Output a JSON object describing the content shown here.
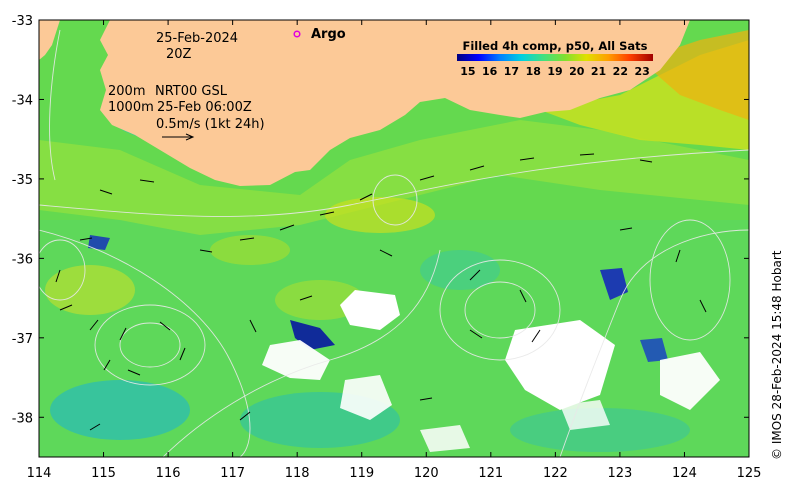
{
  "map": {
    "date_line1": "25-Feb-2024",
    "date_line2": "20Z",
    "argo_label": "Argo",
    "depth_200": "200m",
    "depth_1000": "1000m",
    "ssh_source": "NRT00 GSL",
    "ssh_time": "25-Feb 06:00Z",
    "velocity_scale": "0.5m/s (1kt 24h)",
    "lon_ticks": [
      "114",
      "115",
      "116",
      "117",
      "118",
      "119",
      "120",
      "121",
      "122",
      "123",
      "124",
      "125"
    ],
    "lat_ticks": [
      "-33",
      "-34",
      "-35",
      "-36",
      "-37",
      "-38"
    ],
    "lon_range": [
      114,
      125
    ],
    "lat_range": [
      -38.5,
      -33
    ]
  },
  "colorbar": {
    "title": "Filled 4h comp, p50, All Sats",
    "ticks": [
      "15",
      "16",
      "17",
      "18",
      "19",
      "20",
      "21",
      "22",
      "23"
    ],
    "range": [
      14.5,
      23.5
    ]
  },
  "credit": "© IMOS 28-Feb-2024 15:48 Hobart",
  "colors": {
    "land": "#fcc997",
    "argo": "#e000e0",
    "cloud": "#ffffff",
    "contour": "#e8e8e8"
  },
  "icons": {
    "argo_marker": "circle-icon",
    "scale_arrow": "arrow-right-icon"
  }
}
